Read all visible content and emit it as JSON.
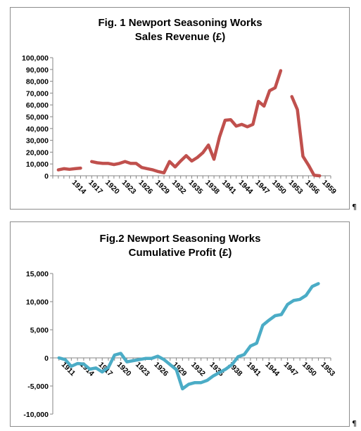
{
  "paragraph_mark": "¶",
  "chart_data": [
    {
      "type": "line",
      "title_lines": [
        "Fig. 1 Newport Seasoning Works",
        "Sales Revenue (£)"
      ],
      "color": "#c0504d",
      "ylim": [
        0,
        100000
      ],
      "yticks": [
        0,
        10000,
        20000,
        30000,
        40000,
        50000,
        60000,
        70000,
        80000,
        90000,
        100000
      ],
      "ytick_labels": [
        "0",
        "10,000",
        "20,000",
        "30,000",
        "40,000",
        "50,000",
        "60,000",
        "70,000",
        "80,000",
        "90,000",
        "100,000"
      ],
      "xlim": [
        1911,
        1961
      ],
      "xtick_labels": [
        "1914",
        "1917",
        "1920",
        "1923",
        "1926",
        "1929",
        "1932",
        "1935",
        "1938",
        "1941",
        "1944",
        "1947",
        "1950",
        "1953",
        "1956",
        "1959"
      ],
      "segments": [
        [
          [
            1912,
            5000
          ],
          [
            1913,
            6000
          ],
          [
            1914,
            5500
          ],
          [
            1915,
            6000
          ],
          [
            1916,
            6500
          ]
        ],
        [
          [
            1918,
            12000
          ],
          [
            1919,
            11000
          ],
          [
            1920,
            10500
          ],
          [
            1921,
            10500
          ],
          [
            1922,
            9500
          ],
          [
            1923,
            10500
          ],
          [
            1924,
            12000
          ],
          [
            1925,
            10500
          ],
          [
            1926,
            10500
          ],
          [
            1927,
            7000
          ],
          [
            1928,
            6000
          ],
          [
            1929,
            5000
          ],
          [
            1930,
            3500
          ],
          [
            1931,
            2500
          ],
          [
            1932,
            12000
          ],
          [
            1933,
            7500
          ],
          [
            1934,
            12500
          ],
          [
            1935,
            17000
          ],
          [
            1936,
            12500
          ],
          [
            1937,
            15500
          ],
          [
            1938,
            19500
          ],
          [
            1939,
            26000
          ],
          [
            1940,
            14000
          ],
          [
            1941,
            33000
          ],
          [
            1942,
            47000
          ],
          [
            1943,
            47500
          ],
          [
            1944,
            42000
          ],
          [
            1945,
            43500
          ],
          [
            1946,
            41500
          ],
          [
            1947,
            43500
          ],
          [
            1948,
            63000
          ],
          [
            1949,
            59000
          ],
          [
            1950,
            72000
          ],
          [
            1951,
            74500
          ],
          [
            1952,
            89000
          ]
        ],
        [
          [
            1954,
            67000
          ],
          [
            1955,
            56000
          ],
          [
            1956,
            16500
          ],
          [
            1957,
            9000
          ],
          [
            1958,
            500
          ],
          [
            1959,
            0
          ]
        ]
      ]
    },
    {
      "type": "line",
      "title_lines": [
        "Fig.2 Newport Seasoning Works",
        "Cumulative Profit (£)"
      ],
      "color": "#4bacc6",
      "ylim": [
        -10000,
        15000
      ],
      "yticks": [
        -10000,
        -5000,
        0,
        5000,
        10000,
        15000
      ],
      "ytick_labels": [
        "-10,000",
        "-5,000",
        "0",
        "5,000",
        "10,000",
        "15,000"
      ],
      "xlim": [
        1910,
        1955
      ],
      "xtick_labels": [
        "1911",
        "1914",
        "1917",
        "1920",
        "1923",
        "1926",
        "1929",
        "1932",
        "1935",
        "1938",
        "1941",
        "1944",
        "1947",
        "1950",
        "1953"
      ],
      "segments": [
        [
          [
            1911,
            0
          ],
          [
            1912,
            -300
          ],
          [
            1913,
            -1500
          ],
          [
            1914,
            -1000
          ],
          [
            1915,
            -1100
          ],
          [
            1916,
            -2000
          ],
          [
            1917,
            -1800
          ],
          [
            1918,
            -2500
          ],
          [
            1919,
            -1700
          ],
          [
            1920,
            500
          ],
          [
            1921,
            800
          ],
          [
            1922,
            -700
          ],
          [
            1923,
            -500
          ],
          [
            1924,
            -300
          ],
          [
            1925,
            -100
          ],
          [
            1926,
            -100
          ],
          [
            1927,
            300
          ],
          [
            1928,
            -300
          ],
          [
            1929,
            -1200
          ],
          [
            1930,
            -2100
          ],
          [
            1931,
            -5500
          ],
          [
            1932,
            -4700
          ],
          [
            1933,
            -4400
          ],
          [
            1934,
            -4400
          ],
          [
            1935,
            -4000
          ],
          [
            1936,
            -3200
          ],
          [
            1937,
            -2600
          ],
          [
            1938,
            -2000
          ],
          [
            1939,
            -1200
          ],
          [
            1940,
            200
          ],
          [
            1941,
            600
          ],
          [
            1942,
            2100
          ],
          [
            1943,
            2600
          ],
          [
            1944,
            5800
          ],
          [
            1945,
            6700
          ],
          [
            1946,
            7500
          ],
          [
            1947,
            7700
          ],
          [
            1948,
            9500
          ],
          [
            1949,
            10200
          ],
          [
            1950,
            10400
          ],
          [
            1951,
            11100
          ],
          [
            1952,
            12700
          ],
          [
            1953,
            13200
          ]
        ]
      ]
    }
  ]
}
